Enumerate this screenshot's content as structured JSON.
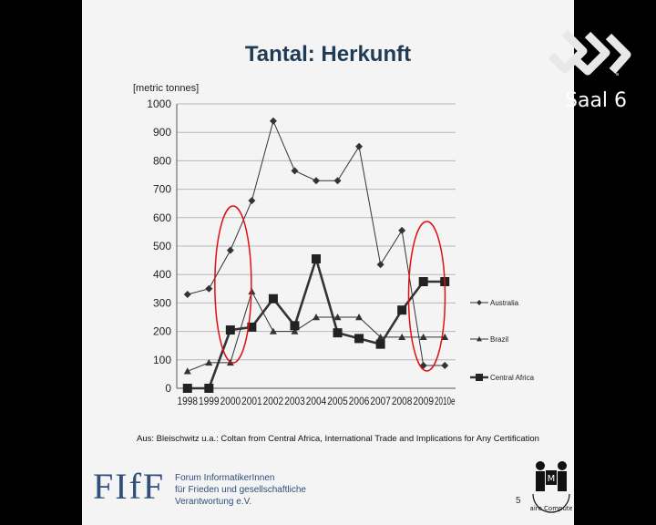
{
  "slide": {
    "title": "Tantal: Herkunft",
    "source": "Aus: Bleischwitz u.a.: Coltan from Central Africa, International Trade and Implications for Any Certification",
    "org_logo_text": "FIfF",
    "org_lines": [
      "Forum InformatikerInnen",
      "für Frieden und gesellschaftliche",
      "Verantwortung e.V."
    ],
    "page_number": "5",
    "fair_logo_text": "Faire Computer"
  },
  "channel": {
    "label": "Saal 6"
  },
  "colors": {
    "background": "#000000",
    "slide": "#f4f4f4",
    "title": "#1f3b55",
    "highlight": "#e01010",
    "series": "#333333"
  },
  "chart_data": {
    "type": "line",
    "ylabel": "[metric tonnes]",
    "ylim": [
      0,
      1000
    ],
    "yticks": [
      "0",
      "100",
      "200",
      "300",
      "400",
      "500",
      "600",
      "700",
      "800",
      "900",
      "1000"
    ],
    "categories": [
      "1998",
      "1999",
      "2000",
      "2001",
      "2002",
      "2003",
      "2004",
      "2005",
      "2006",
      "2007",
      "2008",
      "2009",
      "2010e"
    ],
    "grid": "horizontal",
    "legend_position": "right",
    "series": [
      {
        "name": "Australia",
        "marker": "diamond",
        "values": [
          330,
          350,
          485,
          660,
          940,
          765,
          730,
          730,
          850,
          435,
          555,
          80,
          80
        ]
      },
      {
        "name": "Brazil",
        "marker": "triangle",
        "values": [
          60,
          90,
          90,
          340,
          200,
          200,
          250,
          250,
          250,
          180,
          180,
          180,
          180
        ]
      },
      {
        "name": "Central Africa",
        "marker": "square",
        "values": [
          0,
          0,
          205,
          215,
          315,
          220,
          455,
          195,
          175,
          155,
          275,
          375,
          375
        ]
      }
    ],
    "highlighted_years": [
      "2000",
      "2009-2010e"
    ]
  }
}
